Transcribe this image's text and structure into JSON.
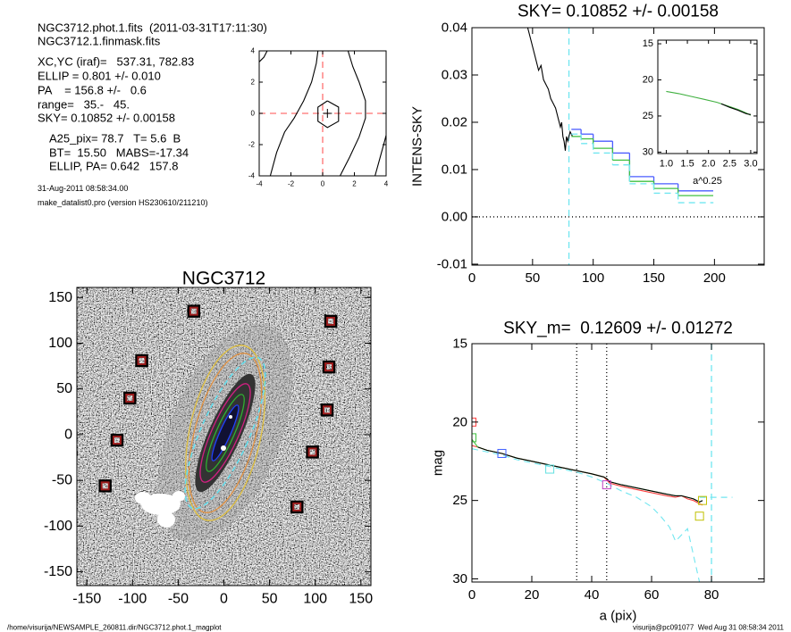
{
  "info": {
    "lines": [
      "NGC3712.phot.1.fits  (2011-03-31T17:11:30)",
      "NGC3712.1.finmask.fits",
      "XC,YC (iraf)=   537.31, 782.83",
      "ELLIP = 0.801 +/- 0.010",
      "PA    = 156.8 +/-   0.6",
      "range=   35.-   45.",
      "SKY= 0.10852 +/- 0.00158",
      "A25_pix= 78.7   T= 5.6  B",
      "BT=  15.50   MABS=-17.34",
      "ELLIP, PA= 0.642   157.8"
    ],
    "notes": [
      "31-Aug-2011 08:58:34.00",
      "make_datalist0.pro (version HS230610/211210)"
    ]
  },
  "chart_data": [
    {
      "type": "contour",
      "xlim": [
        -4,
        4
      ],
      "ylim": [
        -4,
        4
      ],
      "xticks": [
        -4,
        -2,
        0,
        2,
        4
      ],
      "yticks": [
        -4,
        -2,
        0,
        2,
        4
      ],
      "series": [
        {
          "color": "#000000",
          "x": [
            -3.3,
            -2.9,
            -2.4,
            -1.8,
            -1.2,
            -0.7,
            -0.4,
            -0.3
          ],
          "values": [
            -4,
            -2.5,
            -1.2,
            -0.3,
            0.8,
            2,
            3.2,
            4
          ]
        },
        {
          "color": "#000000",
          "x": [
            1.1,
            1.7,
            2.3,
            2.7,
            2.7,
            2.3,
            1.9,
            1.6
          ],
          "values": [
            -4,
            -2.8,
            -1.5,
            -0.3,
            0.8,
            2,
            3,
            4
          ]
        },
        {
          "color": "#000000",
          "x": [
            3.3,
            3.6,
            3.9,
            4
          ],
          "values": [
            -4,
            -2.9,
            -1.8,
            -1.4
          ]
        },
        {
          "color": "#000000",
          "x": [
            -4,
            -3.7,
            -3.5
          ],
          "values": [
            3.3,
            3.6,
            4
          ]
        },
        {
          "color": "#000000",
          "x": [
            0.3,
            1,
            1,
            0.3,
            -0.3,
            -0.3,
            0.3
          ],
          "values": [
            0.8,
            0.4,
            -0.5,
            -0.9,
            -0.5,
            0.4,
            0.8
          ]
        },
        {
          "color": "#000000",
          "marker": "plus",
          "x": [
            0.3
          ],
          "values": [
            0
          ]
        }
      ],
      "vlines": [
        {
          "value": 0,
          "color": "#ff7070",
          "style": "dashed"
        }
      ],
      "hlines": [
        {
          "value": 0,
          "color": "#ff7070",
          "style": "dashed"
        }
      ]
    },
    {
      "type": "line",
      "title": "SKY= 0.10852 +/- 0.00158",
      "ylabel": "INTENS-SKY",
      "xlim": [
        0,
        241
      ],
      "ylim": [
        -0.0102,
        0.04
      ],
      "xticks": [
        0,
        50,
        100,
        150,
        200
      ],
      "yticks": [
        {
          "value": -0.01,
          "label": "-0.01"
        },
        {
          "value": 0,
          "label": "0.00"
        },
        {
          "value": 0.01,
          "label": "0.01"
        },
        {
          "value": 0.02,
          "label": "0.02"
        },
        {
          "value": 0.03,
          "label": "0.03"
        },
        {
          "value": 0.04,
          "label": "0.04"
        }
      ],
      "series": [
        {
          "color": "#000000",
          "x": [
            46,
            49,
            51,
            53,
            55,
            57,
            59,
            61,
            63,
            65,
            67,
            69,
            71,
            73,
            74,
            75,
            76,
            77,
            78,
            79,
            81,
            83
          ],
          "values": [
            0.04,
            0.037,
            0.035,
            0.033,
            0.031,
            0.032,
            0.029,
            0.028,
            0.027,
            0.025,
            0.024,
            0.023,
            0.021,
            0.019,
            0.02,
            0.017,
            0.016,
            0.014,
            0.017,
            0.016,
            0.018,
            0.017
          ]
        },
        {
          "color": "#4a5cff",
          "style": "step",
          "x": [
            82,
            90,
            100,
            116,
            130,
            150,
            170,
            199
          ],
          "values": [
            0.0185,
            0.0175,
            0.016,
            0.0135,
            0.0085,
            0.007,
            0.0055,
            0.0055
          ]
        },
        {
          "color": "#40c040",
          "style": "step",
          "x": [
            82,
            90,
            100,
            116,
            130,
            150,
            170,
            199
          ],
          "values": [
            0.017,
            0.0165,
            0.0145,
            0.012,
            0.0075,
            0.006,
            0.0045,
            0.0045
          ]
        },
        {
          "color": "#70e6f0",
          "style": "step-dashed",
          "x": [
            82,
            90,
            100,
            116,
            130,
            150,
            170,
            199
          ],
          "values": [
            0.0175,
            0.0155,
            0.0135,
            0.011,
            0.007,
            0.005,
            0.003,
            0.003
          ]
        }
      ],
      "vlines": [
        {
          "value": 80,
          "color": "#70e6f0",
          "style": "dashed"
        }
      ],
      "hlines": [
        {
          "value": 0,
          "color": "#000000",
          "style": "dotted"
        }
      ]
    },
    {
      "type": "line",
      "xlabel": "a^0.25",
      "xlim": [
        0.8,
        3.15
      ],
      "ylim": [
        14.5,
        30.2
      ],
      "y_inverted": true,
      "xticks": [
        {
          "value": 1,
          "label": "1.0"
        },
        {
          "value": 1.5,
          "label": "1.5"
        },
        {
          "value": 2,
          "label": "2.0"
        },
        {
          "value": 2.5,
          "label": "2.5"
        },
        {
          "value": 3,
          "label": "3.0"
        }
      ],
      "yticks": [
        15,
        20,
        25,
        30
      ],
      "series": [
        {
          "color": "#40b040",
          "x": [
            1,
            1.3,
            1.6,
            1.9,
            2.2,
            2.5,
            2.7,
            2.9,
            3
          ],
          "values": [
            21.6,
            21.9,
            22.3,
            22.7,
            23.1,
            23.7,
            24.1,
            24.6,
            24.9
          ]
        },
        {
          "color": "#000000",
          "x": [
            2.3,
            2.5,
            2.7,
            2.9,
            3
          ],
          "values": [
            23.3,
            23.8,
            24.2,
            24.7,
            24.8
          ]
        }
      ]
    },
    {
      "type": "image",
      "title": "NGC3712",
      "xlim": [
        -161,
        161
      ],
      "ylim": [
        -165,
        161
      ],
      "xticks": [
        -150,
        -100,
        -50,
        0,
        50,
        100,
        150
      ],
      "yticks": [
        -150,
        -100,
        -50,
        0,
        50,
        100,
        150
      ],
      "series": [
        {
          "marker": "square",
          "color": "#9b1b1b",
          "edgecolor": "#000000",
          "x": [
            -33,
            117,
            -90,
            115,
            -103,
            113,
            -117,
            97,
            -130,
            80
          ],
          "values": [
            135,
            124,
            81,
            74,
            40,
            27,
            -6,
            -19,
            -56,
            -79
          ]
        }
      ]
    },
    {
      "type": "line",
      "title": "SKY_m=  0.12609 +/- 0.01272",
      "xlabel": "a (pix)",
      "ylabel": "mag",
      "xlim": [
        0,
        97.6
      ],
      "ylim": [
        15,
        30.2
      ],
      "y_inverted": true,
      "xticks": [
        0,
        20,
        40,
        60,
        80
      ],
      "yticks": [
        15,
        20,
        25,
        30
      ],
      "series": [
        {
          "color": "#70e6f0",
          "style": "dashed",
          "x": [
            0,
            5,
            10,
            15,
            20,
            25,
            30,
            35,
            40,
            45,
            50,
            55,
            60,
            63,
            66,
            68,
            70,
            72,
            74,
            76
          ],
          "values": [
            21.7,
            21.9,
            22.1,
            22.4,
            22.6,
            22.8,
            23,
            23.2,
            23.5,
            23.9,
            24.4,
            24.8,
            25.4,
            26,
            26.7,
            27.6,
            27.2,
            26.8,
            28.5,
            30.2
          ]
        },
        {
          "color": "#ff4040",
          "x": [
            0,
            2,
            5,
            10,
            15,
            20,
            25,
            30,
            35,
            40,
            44,
            45,
            46,
            50,
            55,
            60,
            65,
            68,
            70,
            72,
            74,
            76,
            77
          ],
          "values": [
            21.5,
            21.6,
            21.8,
            22,
            22.3,
            22.5,
            22.7,
            22.9,
            23.1,
            23.3,
            23.5,
            23.7,
            23.9,
            24.1,
            24.3,
            24.5,
            24.7,
            24.8,
            24.7,
            24.9,
            25,
            25.2,
            25.3
          ]
        },
        {
          "color": "#40c040",
          "x": [
            0,
            2,
            5,
            10,
            15,
            20,
            25,
            30,
            35,
            40,
            44,
            45,
            46,
            50,
            55,
            60,
            65,
            68,
            70,
            72,
            74,
            76,
            77
          ],
          "values": [
            21.1,
            21.6,
            21.8,
            22,
            22.3,
            22.5,
            22.7,
            22.9,
            23.1,
            23.3,
            23.5,
            23.6,
            23.8,
            24,
            24.2,
            24.4,
            24.6,
            24.7,
            24.7,
            24.8,
            24.9,
            25.1,
            25
          ]
        },
        {
          "color": "#000000",
          "x": [
            2,
            5,
            10,
            15,
            20,
            25,
            30,
            35,
            40,
            44,
            45,
            46,
            50,
            55,
            60,
            65,
            68,
            70,
            72,
            74,
            76,
            77
          ],
          "values": [
            21.6,
            21.8,
            22,
            22.3,
            22.5,
            22.7,
            22.9,
            23.1,
            23.3,
            23.5,
            23.6,
            23.8,
            24,
            24.2,
            24.4,
            24.6,
            24.7,
            24.7,
            24.8,
            24.9,
            25.1,
            25
          ]
        },
        {
          "color": "#ff4040",
          "marker": "square",
          "x": [
            0
          ],
          "values": [
            20
          ]
        },
        {
          "color": "#40c040",
          "marker": "square",
          "x": [
            0
          ],
          "values": [
            21
          ]
        },
        {
          "color": "#4060ff",
          "marker": "square",
          "x": [
            10
          ],
          "values": [
            22
          ]
        },
        {
          "color": "#60e0e0",
          "marker": "square",
          "x": [
            26
          ],
          "values": [
            23
          ]
        },
        {
          "color": "#c040c0",
          "marker": "square",
          "x": [
            45
          ],
          "values": [
            24
          ]
        },
        {
          "color": "#c0c000",
          "marker": "square",
          "x": [
            77,
            76
          ],
          "values": [
            25,
            26
          ]
        }
      ],
      "vlines": [
        {
          "value": 35,
          "color": "#000000",
          "style": "dotted"
        },
        {
          "value": 45,
          "color": "#000000",
          "style": "dotted"
        },
        {
          "value": 80,
          "color": "#70e6f0",
          "style": "dashed"
        }
      ],
      "hlines": [
        {
          "value": 24.8,
          "xrange": [
            76,
            87
          ],
          "color": "#70e6f0",
          "style": "dashed"
        }
      ]
    }
  ],
  "footer": {
    "left": "/home/visurija/NEWSAMPLE_260811.dir/NGC3712.phot.1_magplot",
    "right": "visurija@pc091077  Wed Aug 31 08:58:34 2011"
  }
}
